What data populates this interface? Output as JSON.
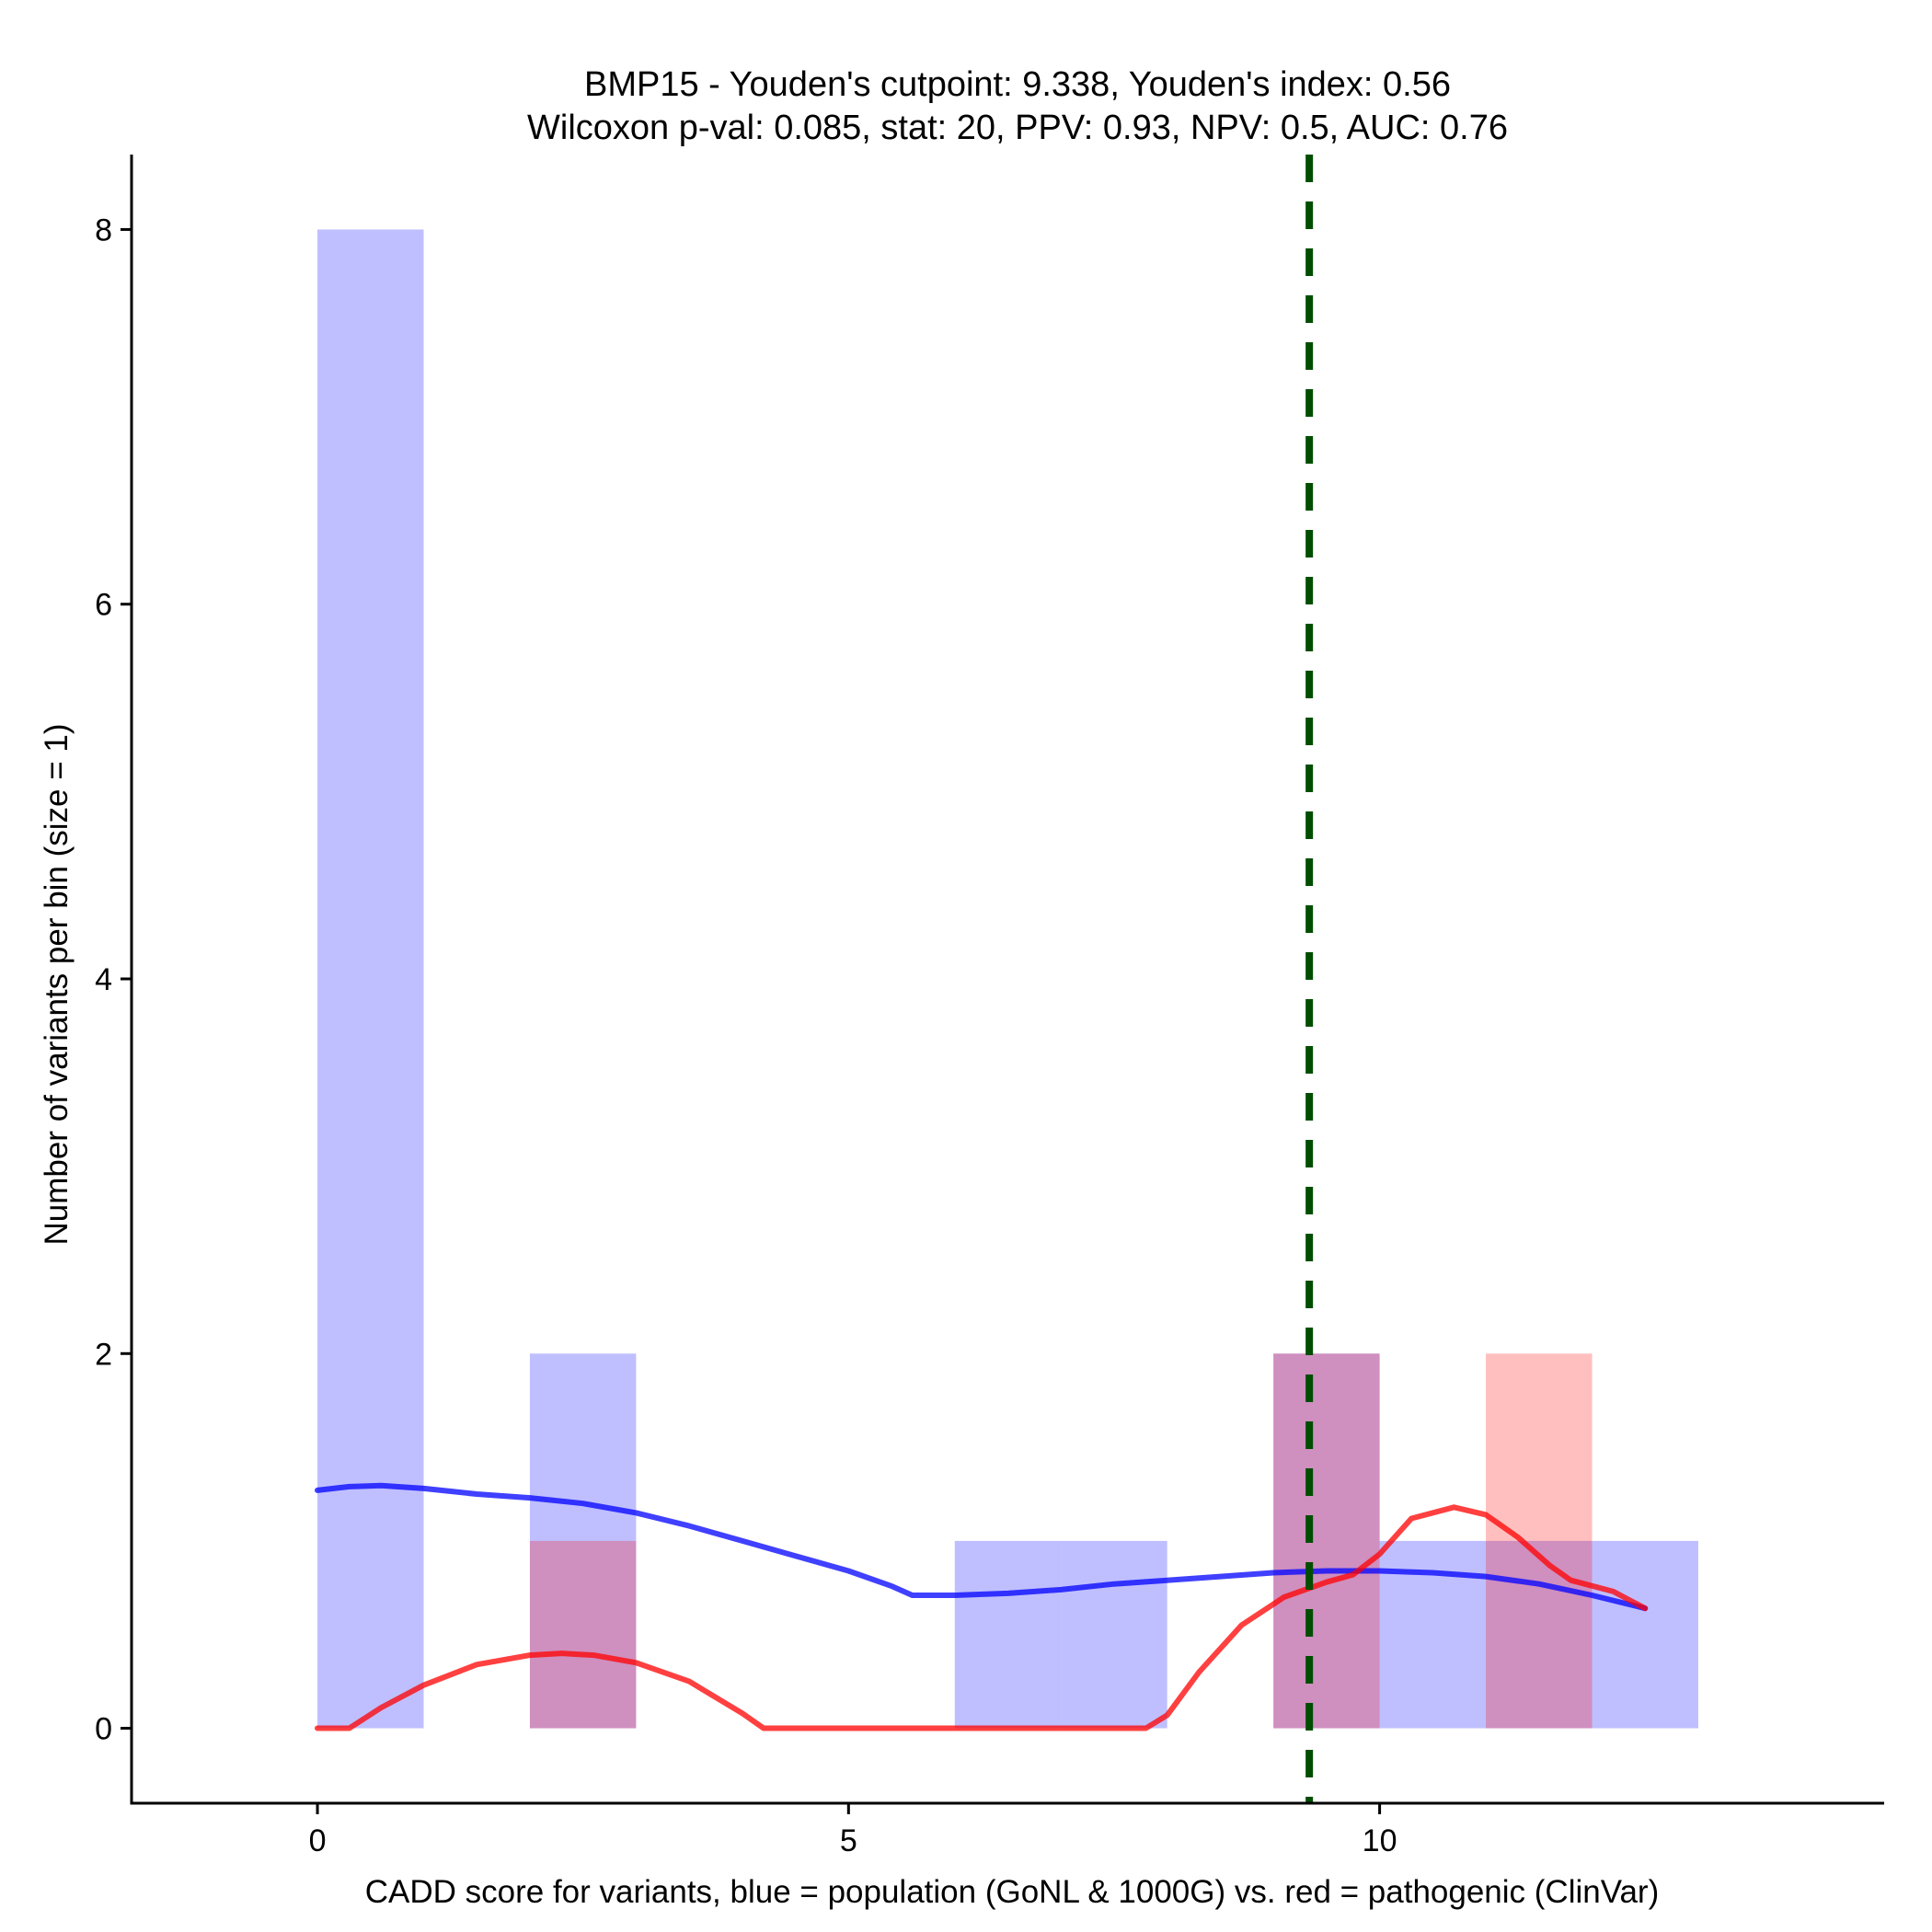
{
  "chart_data": {
    "type": "bar",
    "title": "BMP15 - Youden's cutpoint: 9.338, Youden's index: 0.56",
    "subtitle": "Wilcoxon p-val: 0.085, stat: 20, PPV: 0.93, NPV: 0.5, AUC: 0.76",
    "xlabel": "CADD score for variants, blue = population (GoNL & 1000G) vs. red = pathogenic (ClinVar)",
    "ylabel": "Number of variants per bin (size = 1)",
    "xlim": [
      -1.75,
      14.75
    ],
    "ylim": [
      -0.4,
      8.4
    ],
    "x_ticks": [
      0,
      5,
      10
    ],
    "x_tick_labels": [
      "0",
      "5",
      "10"
    ],
    "y_ticks": [
      0,
      2,
      4,
      6,
      8
    ],
    "y_tick_labels": [
      "0",
      "2",
      "4",
      "6",
      "8"
    ],
    "grid": false,
    "bin_width": 1,
    "series": [
      {
        "name": "population",
        "color": "#0000ff",
        "fill_opacity": 0.25,
        "bins": [
          {
            "start": 0,
            "count": 8
          },
          {
            "start": 2,
            "count": 2
          },
          {
            "start": 6,
            "count": 1
          },
          {
            "start": 7,
            "count": 1
          },
          {
            "start": 9,
            "count": 2
          },
          {
            "start": 10,
            "count": 1
          },
          {
            "start": 11,
            "count": 1
          },
          {
            "start": 12,
            "count": 1
          }
        ],
        "density_curve": {
          "x": [
            0,
            0.3,
            0.6,
            1.0,
            1.5,
            2.0,
            2.5,
            3.0,
            3.5,
            4.0,
            4.5,
            5.0,
            5.4,
            5.6,
            6.0,
            6.5,
            7.0,
            7.5,
            8.0,
            8.5,
            9.0,
            9.5,
            10.0,
            10.5,
            11.0,
            11.5,
            12.0,
            12.5
          ],
          "y": [
            1.27,
            1.29,
            1.295,
            1.28,
            1.25,
            1.23,
            1.2,
            1.15,
            1.08,
            1.0,
            0.92,
            0.84,
            0.76,
            0.71,
            0.71,
            0.72,
            0.74,
            0.77,
            0.79,
            0.81,
            0.83,
            0.84,
            0.84,
            0.83,
            0.81,
            0.77,
            0.71,
            0.64
          ]
        }
      },
      {
        "name": "pathogenic",
        "color": "#ff0000",
        "fill_opacity": 0.25,
        "bins": [
          {
            "start": 2,
            "count": 1
          },
          {
            "start": 9,
            "count": 2
          },
          {
            "start": 11,
            "count": 2
          }
        ],
        "density_curve": {
          "x": [
            0,
            0.3,
            0.6,
            1.0,
            1.5,
            2.0,
            2.3,
            2.6,
            3.0,
            3.5,
            4.0,
            4.2,
            5.0,
            6.0,
            7.0,
            7.8,
            8.0,
            8.3,
            8.7,
            9.1,
            9.5,
            9.75,
            10.0,
            10.3,
            10.7,
            11.0,
            11.3,
            11.6,
            11.8,
            12.2,
            12.5
          ],
          "y": [
            0,
            0,
            0.11,
            0.23,
            0.34,
            0.39,
            0.4,
            0.39,
            0.35,
            0.25,
            0.08,
            0.0,
            0.0,
            0.0,
            0.0,
            0.0,
            0.07,
            0.3,
            0.55,
            0.7,
            0.78,
            0.82,
            0.93,
            1.12,
            1.18,
            1.14,
            1.02,
            0.87,
            0.79,
            0.73,
            0.64
          ]
        }
      }
    ],
    "overlap_color": "#990066",
    "cutpoint": {
      "x": 9.338,
      "color": "#004d00",
      "style": "dashed"
    }
  }
}
